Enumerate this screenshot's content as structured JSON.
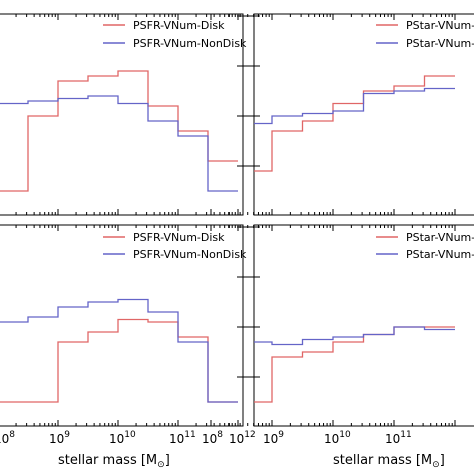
{
  "chart_data": [
    {
      "type": "line",
      "step": true,
      "xscale": "log",
      "yscale": "log",
      "xlim": [
        100000000.0,
        1000000000000.0
      ],
      "ylim": [
        0.001,
        1
      ],
      "legend_placement": "top-right",
      "bin_edges_log10": [
        8.0,
        8.5,
        9.0,
        9.5,
        10.0,
        10.5,
        11.0,
        11.5,
        12.0
      ],
      "series": [
        {
          "name": "PSFR-VNum-Disk",
          "color": "#e06666",
          "log10_values": [
            -3.5,
            -2.0,
            -1.3,
            -1.2,
            -1.1,
            -1.8,
            -2.3,
            -2.9
          ]
        },
        {
          "name": "PSFR-VNum-NonDisk",
          "color": "#6464c8",
          "log10_values": [
            -1.75,
            -1.7,
            -1.65,
            -1.6,
            -1.75,
            -2.1,
            -2.4,
            -3.5
          ]
        }
      ]
    },
    {
      "type": "line",
      "step": true,
      "xscale": "log",
      "yscale": "log",
      "xlim": [
        100000000.0,
        1000000000000.0
      ],
      "ylim": [
        0.001,
        1
      ],
      "legend_placement": "top-right",
      "bin_edges_log10": [
        8.0,
        8.5,
        9.0,
        9.5,
        10.0,
        10.5,
        11.0,
        11.5,
        12.0
      ],
      "series": [
        {
          "name": "PStar-VNum-Disk",
          "color": "#e06666",
          "log10_values": [
            -3.5,
            -3.1,
            -2.3,
            -2.1,
            -1.75,
            -1.5,
            -1.4,
            -1.2
          ]
        },
        {
          "name": "PStar-VNum-NonDisk",
          "color": "#6464c8",
          "log10_values": [
            -2.0,
            -2.15,
            -2.0,
            -1.95,
            -1.9,
            -1.55,
            -1.5,
            -1.45
          ]
        }
      ]
    },
    {
      "type": "line",
      "step": true,
      "xscale": "log",
      "yscale": "log",
      "xlim": [
        100000000.0,
        1000000000000.0
      ],
      "ylim": [
        0.001,
        1
      ],
      "xlabel": "stellar mass [M",
      "xlabel_sub": "⊙",
      "xlabel_close": "]",
      "xticks": [
        "10",
        "10",
        "10",
        "10",
        "10"
      ],
      "xtick_exponents": [
        "8",
        "9",
        "10",
        "11",
        "12"
      ],
      "legend_placement": "top-right",
      "bin_edges_log10": [
        8.0,
        8.5,
        9.0,
        9.5,
        10.0,
        10.5,
        11.0,
        11.5,
        12.0
      ],
      "series": [
        {
          "name": "PSFR-VNum-Disk",
          "color": "#e06666",
          "log10_values": [
            -3.5,
            -3.5,
            -2.3,
            -2.1,
            -1.85,
            -1.9,
            -2.2,
            -3.5
          ]
        },
        {
          "name": "PSFR-VNum-NonDisk",
          "color": "#6464c8",
          "log10_values": [
            -1.9,
            -1.8,
            -1.6,
            -1.5,
            -1.45,
            -1.7,
            -2.3,
            -3.5
          ]
        }
      ]
    },
    {
      "type": "line",
      "step": true,
      "xscale": "log",
      "yscale": "log",
      "xlim": [
        100000000.0,
        1000000000000.0
      ],
      "ylim": [
        0.001,
        1
      ],
      "xlabel": "stellar mass [M",
      "xlabel_sub": "⊙",
      "xlabel_close": "]",
      "xticks": [
        "10",
        "10",
        "10",
        "10"
      ],
      "xtick_exponents": [
        "8",
        "9",
        "10",
        "11"
      ],
      "legend_placement": "top-right",
      "bin_edges_log10": [
        8.0,
        8.5,
        9.0,
        9.5,
        10.0,
        10.5,
        11.0,
        11.5,
        12.0
      ],
      "series": [
        {
          "name": "PStar-VNum-Disk",
          "color": "#e06666",
          "log10_values": [
            -3.5,
            -3.5,
            -2.6,
            -2.5,
            -2.3,
            -2.15,
            -2.0,
            -2.0
          ]
        },
        {
          "name": "PStar-VNum-NonDisk",
          "color": "#6464c8",
          "log10_values": [
            -3.5,
            -2.3,
            -2.35,
            -2.25,
            -2.2,
            -2.15,
            -2.0,
            -2.05
          ]
        }
      ]
    }
  ]
}
